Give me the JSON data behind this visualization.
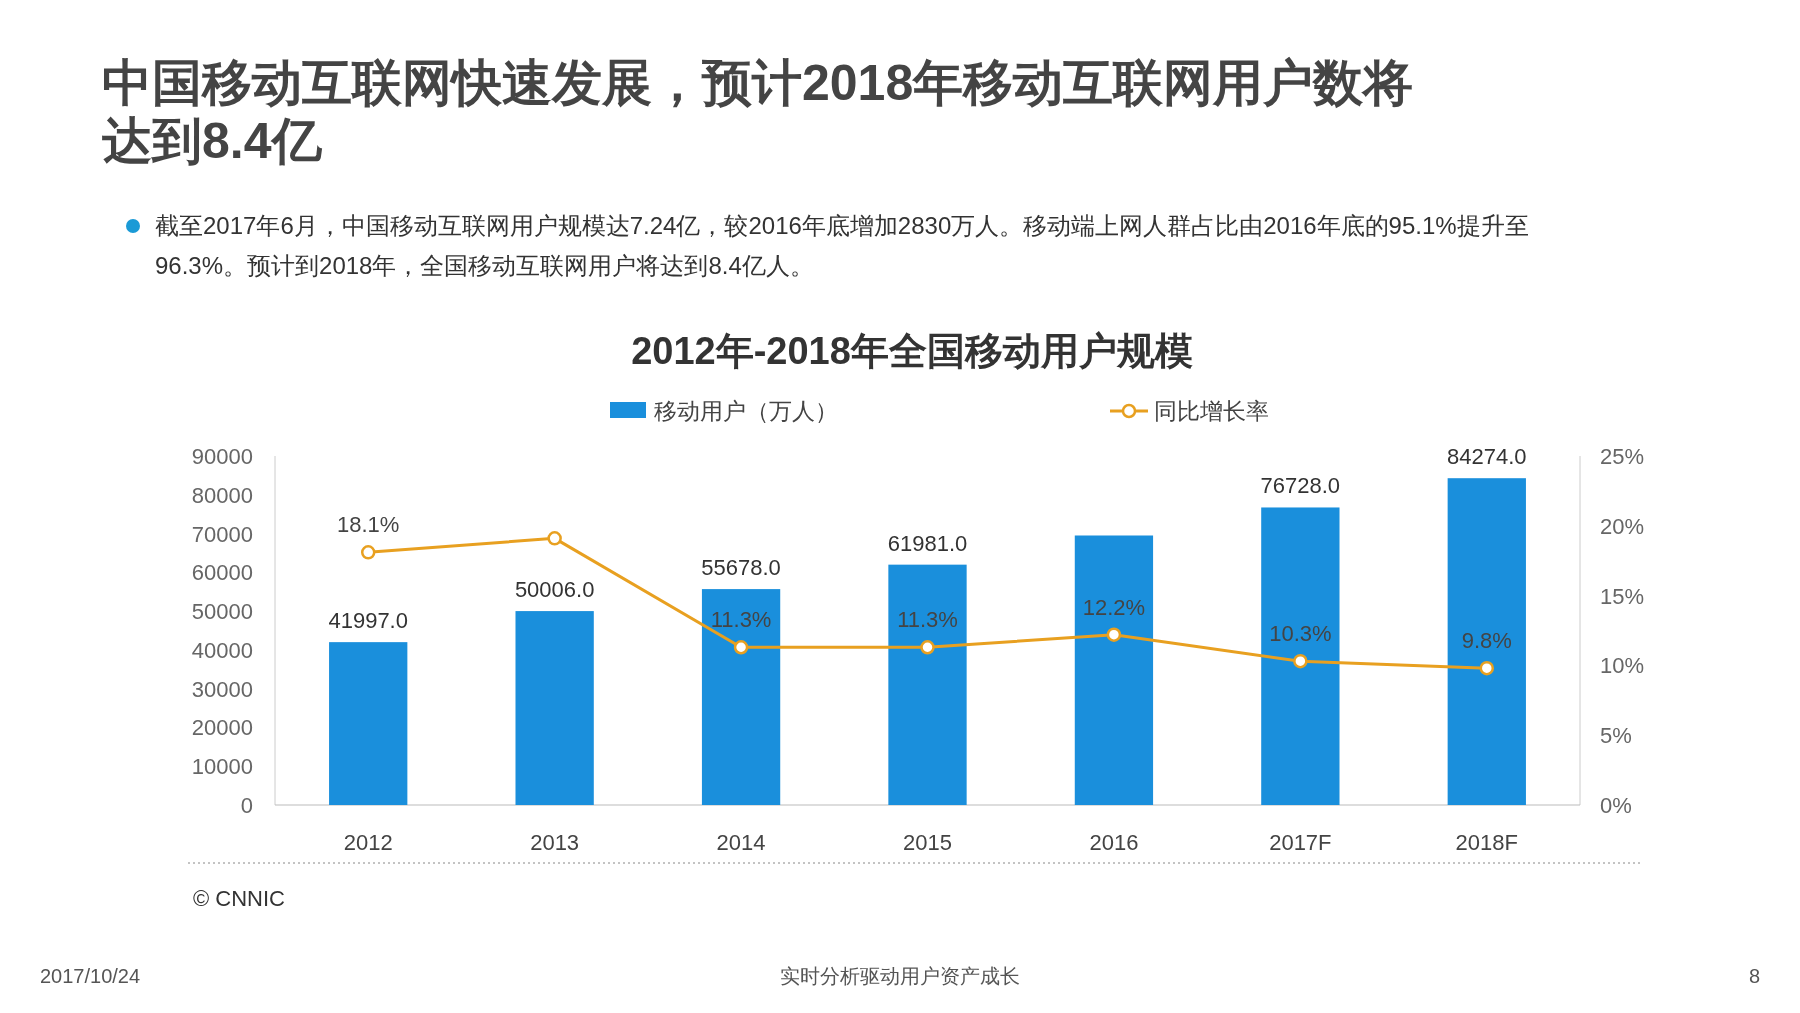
{
  "chart_data": {
    "type": "bar",
    "title": "2012年-2018年全国移动用户规模",
    "annotations": [
      "中国移动互联网快速发展，预计2018年移动互联网用户数将达到8.4亿",
      "截至2017年6月，中国移动互联网用户规模达7.24亿，较2016年底增加2830万人。移动端上网人群占比由2016年底的95.1%提升至96.3%。预计到2018年，全国移动互联网用户将达到8.4亿人。",
      "© CNNIC",
      "2017/10/24",
      "实时分析驱动用户资产成长",
      "8"
    ],
    "categories": [
      "2012",
      "2013",
      "2014",
      "2015",
      "2016",
      "2017F",
      "2018F"
    ],
    "series": [
      {
        "name": "移动用户（万人）",
        "color": "#1a8fdc",
        "values": [
          41997,
          50006,
          55678,
          61981,
          69500,
          76728,
          84274
        ],
        "value_labels": [
          "41997.0",
          "50006.0",
          "55678.0",
          "61981.0",
          null,
          "76728.0",
          "84274.0"
        ]
      },
      {
        "name": "同比增长率",
        "type": "line",
        "axis": "y2",
        "color": "#e8a020",
        "marker": "circle",
        "values": [
          18.1,
          19.1,
          11.3,
          11.3,
          12.2,
          10.3,
          9.8
        ],
        "value_labels": [
          "18.1%",
          null,
          "11.3%",
          "11.3%",
          "12.2%",
          "10.3%",
          "9.8%"
        ]
      }
    ],
    "ylim": [
      0,
      90000
    ],
    "yticks": [
      0,
      10000,
      20000,
      30000,
      40000,
      50000,
      60000,
      70000,
      80000,
      90000
    ],
    "y2lim": [
      0,
      25
    ],
    "y2ticks": [
      {
        "value": 0,
        "label": "0%"
      },
      {
        "value": 5,
        "label": "5%"
      },
      {
        "value": 10,
        "label": "10%"
      },
      {
        "value": 15,
        "label": "15%"
      },
      {
        "value": 20,
        "label": "20%"
      },
      {
        "value": 25,
        "label": "25%"
      }
    ],
    "legend": "top",
    "grid": false
  }
}
